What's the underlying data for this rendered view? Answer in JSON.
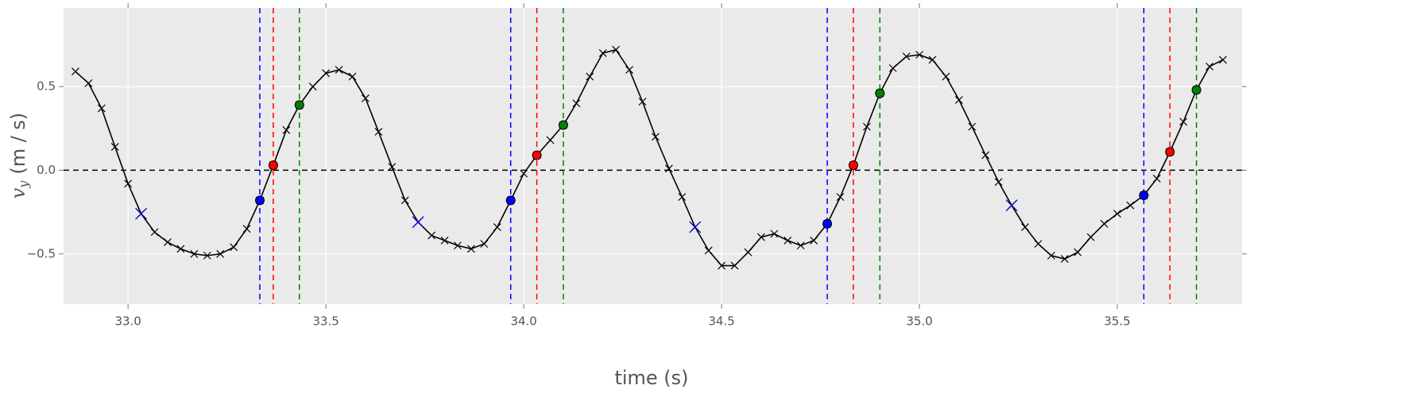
{
  "chart_data": {
    "type": "line",
    "xlabel": "time (s)",
    "ylabel": {
      "var": "v",
      "sub": "y",
      "rest": "(m / s)"
    },
    "x": [
      32.867,
      32.9,
      32.933,
      32.967,
      33.0,
      33.033,
      33.067,
      33.1,
      33.133,
      33.167,
      33.2,
      33.233,
      33.267,
      33.3,
      33.333,
      33.367,
      33.4,
      33.433,
      33.467,
      33.5,
      33.533,
      33.567,
      33.6,
      33.633,
      33.667,
      33.7,
      33.733,
      33.767,
      33.8,
      33.833,
      33.867,
      33.9,
      33.933,
      33.967,
      34.0,
      34.033,
      34.067,
      34.1,
      34.133,
      34.167,
      34.2,
      34.233,
      34.267,
      34.3,
      34.333,
      34.367,
      34.4,
      34.433,
      34.467,
      34.5,
      34.533,
      34.567,
      34.6,
      34.633,
      34.667,
      34.7,
      34.733,
      34.767,
      34.8,
      34.833,
      34.867,
      34.9,
      34.933,
      34.967,
      35.0,
      35.033,
      35.067,
      35.1,
      35.133,
      35.167,
      35.2,
      35.233,
      35.267,
      35.3,
      35.333,
      35.367,
      35.4,
      35.433,
      35.467,
      35.5,
      35.533,
      35.567,
      35.6,
      35.633,
      35.667,
      35.7,
      35.733,
      35.767
    ],
    "values": [
      0.59,
      0.52,
      0.37,
      0.14,
      -0.08,
      -0.26,
      -0.37,
      -0.43,
      -0.47,
      -0.5,
      -0.51,
      -0.5,
      -0.46,
      -0.35,
      -0.18,
      0.03,
      0.24,
      0.39,
      0.5,
      0.58,
      0.6,
      0.56,
      0.43,
      0.23,
      0.02,
      -0.18,
      -0.31,
      -0.39,
      -0.42,
      -0.45,
      -0.47,
      -0.44,
      -0.34,
      -0.18,
      -0.02,
      0.09,
      0.18,
      0.27,
      0.4,
      0.56,
      0.7,
      0.72,
      0.6,
      0.41,
      0.2,
      0.01,
      -0.16,
      -0.34,
      -0.48,
      -0.57,
      -0.57,
      -0.49,
      -0.4,
      -0.38,
      -0.42,
      -0.45,
      -0.42,
      -0.32,
      -0.16,
      0.03,
      0.26,
      0.46,
      0.61,
      0.68,
      0.69,
      0.66,
      0.56,
      0.42,
      0.26,
      0.09,
      -0.07,
      -0.21,
      -0.34,
      -0.44,
      -0.51,
      -0.53,
      -0.49,
      -0.4,
      -0.32,
      -0.26,
      -0.21,
      -0.15,
      -0.05,
      0.11,
      0.29,
      0.48,
      0.62,
      0.66
    ],
    "color": "#000000",
    "markers": [
      {
        "shape": "cross",
        "color": "#0000cc",
        "x": [
          33.033,
          33.733,
          34.433,
          35.233
        ],
        "values": [
          -0.26,
          -0.31,
          -0.34,
          -0.21
        ]
      },
      {
        "shape": "dot",
        "color": "#0000ff",
        "x": [
          33.333,
          33.967,
          34.767,
          35.567
        ],
        "values": [
          -0.18,
          -0.18,
          -0.32,
          -0.15
        ]
      },
      {
        "shape": "dot",
        "color": "#ff0000",
        "x": [
          33.367,
          34.033,
          34.833,
          35.633
        ],
        "values": [
          0.03,
          0.09,
          0.03,
          0.11
        ]
      },
      {
        "shape": "dot",
        "color": "#008000",
        "x": [
          33.433,
          34.1,
          34.9,
          35.7
        ],
        "values": [
          0.39,
          0.27,
          0.46,
          0.48
        ]
      }
    ],
    "vlines": [
      {
        "color": "#0000ff",
        "x": [
          33.333,
          33.967,
          34.767,
          35.567
        ]
      },
      {
        "color": "#ff0000",
        "x": [
          33.367,
          34.033,
          34.833,
          35.633
        ]
      },
      {
        "color": "#008000",
        "x": [
          33.433,
          34.1,
          34.9,
          35.7
        ]
      }
    ],
    "hline": 0,
    "xlim": [
      32.837,
      35.815
    ],
    "ylim": [
      -0.8,
      0.97
    ],
    "xticks": [
      {
        "value": 33,
        "label": "33.0"
      },
      33.5,
      {
        "value": 34,
        "label": "34.0"
      },
      34.5,
      {
        "value": 35,
        "label": "35.0"
      },
      35.5
    ],
    "yticks": [
      {
        "value": -0.5,
        "label": "−0.5"
      },
      {
        "value": 0,
        "label": "0.0"
      },
      0.5
    ],
    "grid": true
  }
}
